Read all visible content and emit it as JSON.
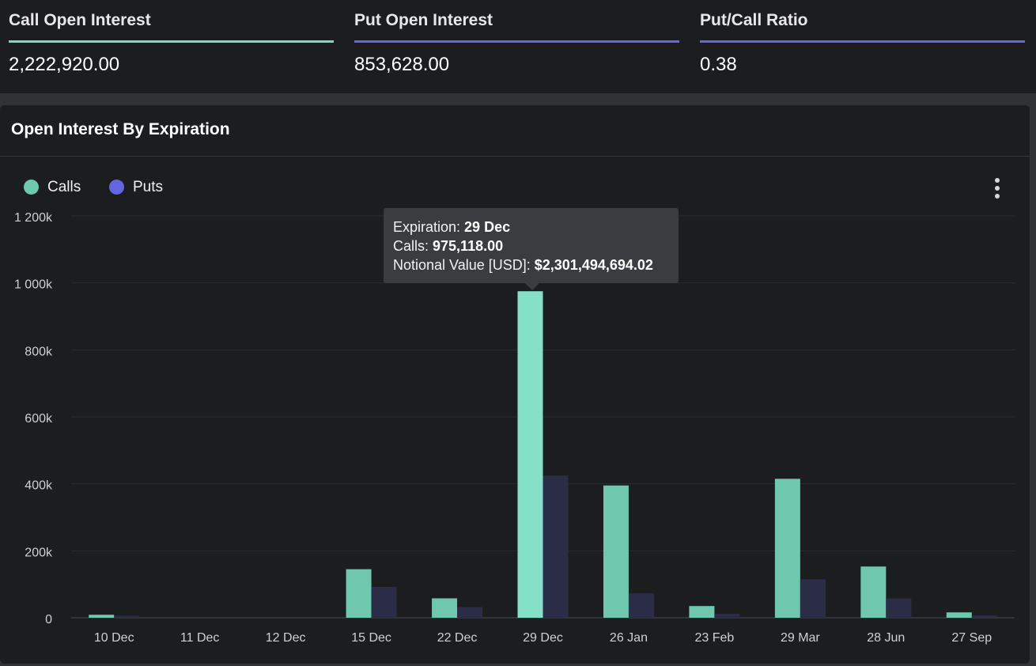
{
  "stats": [
    {
      "label": "Call Open Interest",
      "value": "2,222,920.00",
      "color": "#7ad9c1"
    },
    {
      "label": "Put Open Interest",
      "value": "853,628.00",
      "color": "#6366e0"
    },
    {
      "label": "Put/Call Ratio",
      "value": "0.38",
      "color": "#6366e0"
    }
  ],
  "panel": {
    "title": "Open Interest By Expiration"
  },
  "tooltip": {
    "expiration_label": "Expiration: ",
    "expiration_value": "29 Dec",
    "calls_label": "Calls: ",
    "calls_value": "975,118.00",
    "notional_label": "Notional Value [USD]: ",
    "notional_value": "$2,301,494,694.02"
  },
  "chart_data": {
    "type": "bar",
    "title": "Open Interest By Expiration",
    "categories": [
      "10 Dec",
      "11 Dec",
      "12 Dec",
      "15 Dec",
      "22 Dec",
      "29 Dec",
      "26 Jan",
      "23 Feb",
      "29 Mar",
      "28 Jun",
      "27 Sep"
    ],
    "series": [
      {
        "name": "Calls",
        "color": "#6fc7ae",
        "highlight_color": "#85e0c8",
        "values": [
          9000,
          0,
          0,
          145000,
          58000,
          975118,
          395000,
          35000,
          415000,
          153000,
          16000
        ]
      },
      {
        "name": "Puts",
        "color": "#2b2d46",
        "values": [
          6000,
          0,
          0,
          92000,
          32000,
          425000,
          73000,
          12000,
          115000,
          58000,
          7000
        ]
      }
    ],
    "ylim": [
      0,
      1200000
    ],
    "yticks": [
      {
        "value": 0,
        "label": "0"
      },
      {
        "value": 200000,
        "label": "200k"
      },
      {
        "value": 400000,
        "label": "400k"
      },
      {
        "value": 600000,
        "label": "600k"
      },
      {
        "value": 800000,
        "label": "800k"
      },
      {
        "value": 1000000,
        "label": "1 000k"
      },
      {
        "value": 1200000,
        "label": "1 200k"
      }
    ],
    "highlighted_category": "29 Dec",
    "grid": true,
    "legend_position": "top-left"
  }
}
